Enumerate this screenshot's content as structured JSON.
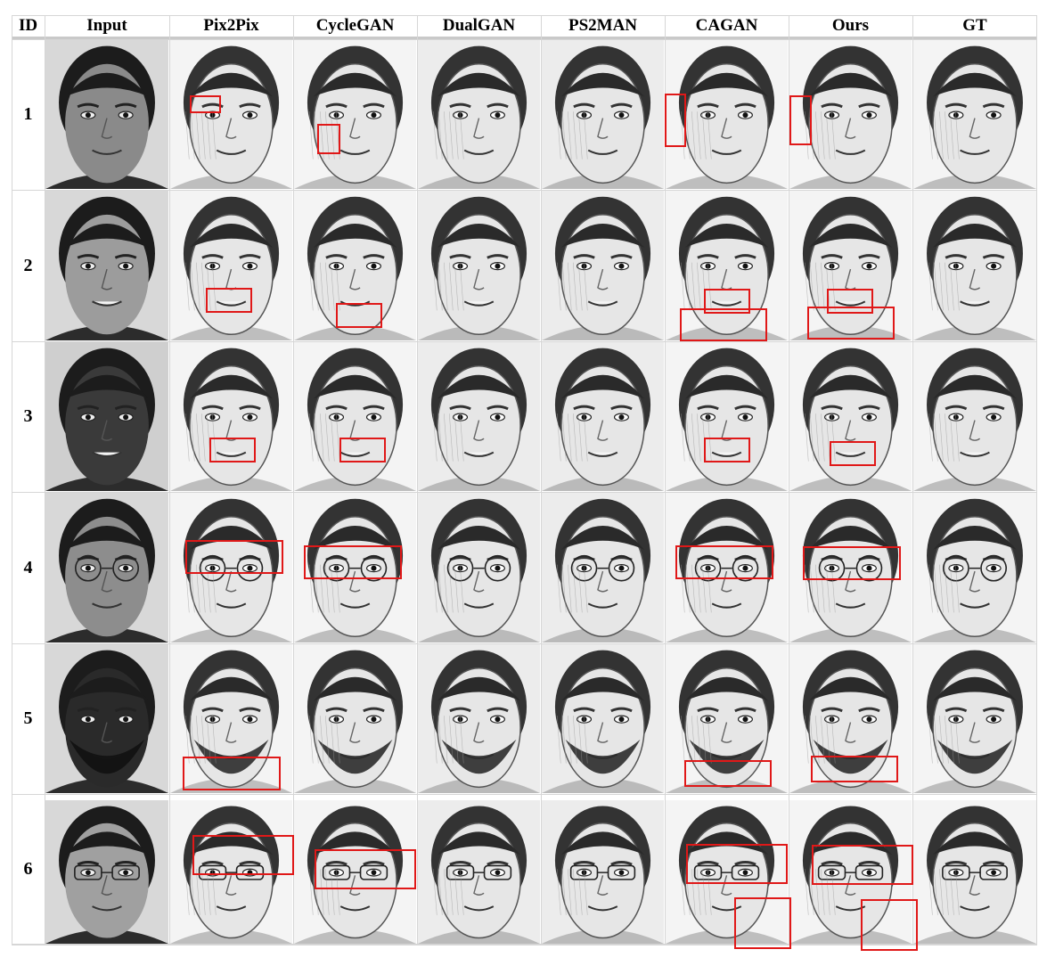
{
  "figure": {
    "columns": [
      "ID",
      "Input",
      "Pix2Pix",
      "CycleGAN",
      "DualGAN",
      "PS2MAN",
      "CAGAN",
      "Ours",
      "GT"
    ],
    "rows": [
      {
        "id": "1"
      },
      {
        "id": "2"
      },
      {
        "id": "3"
      },
      {
        "id": "4"
      },
      {
        "id": "5"
      },
      {
        "id": "6"
      }
    ],
    "colors": {
      "highlight_box": "#e01818",
      "grid_line": "#d6d6d6",
      "header_rule": "#c9c9c9"
    }
  }
}
